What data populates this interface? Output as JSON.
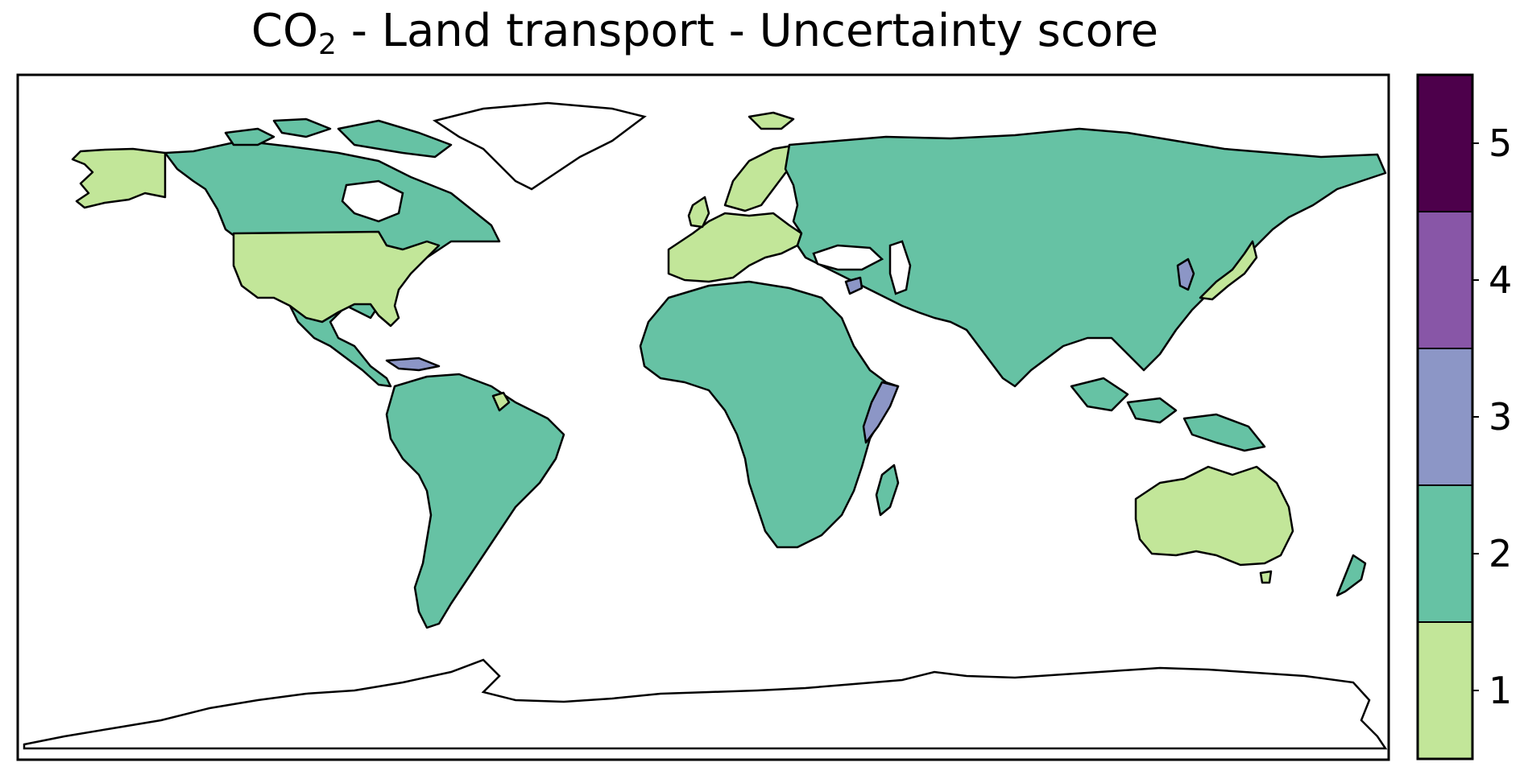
{
  "title": {
    "prefix": "CO",
    "subscript": "2",
    "suffix": " - Land transport - Uncertainty score"
  },
  "colorbar": {
    "ticks": [
      "1",
      "2",
      "3",
      "4",
      "5"
    ],
    "colors": [
      "#c2e699",
      "#66c2a4",
      "#8c96c6",
      "#8856a7",
      "#4d004b"
    ]
  },
  "legend": {
    "score_1_color": "#c2e699",
    "score_2_color": "#66c2a4",
    "score_3_color": "#8c96c6"
  }
}
